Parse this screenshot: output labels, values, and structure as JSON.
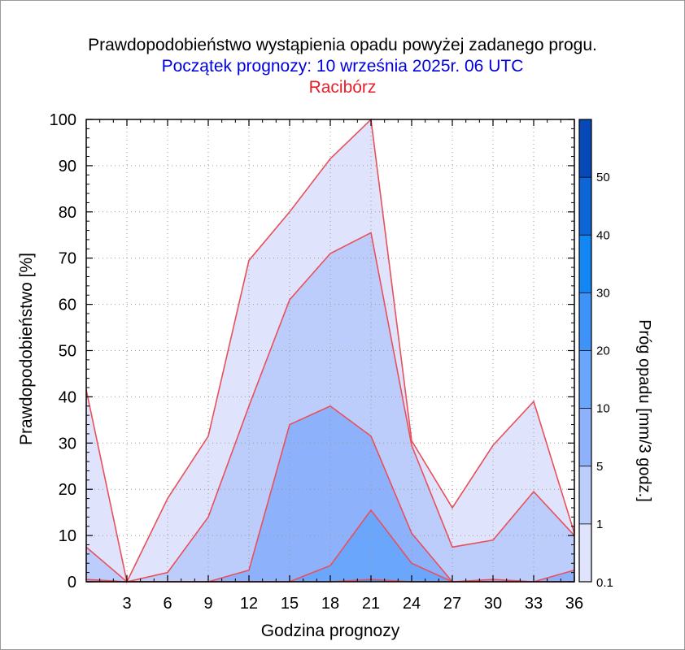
{
  "chart_data": {
    "type": "area",
    "title": "Prawdopodobieństwo wystąpienia opadu powyżej zadanego progu.",
    "subtitle": "Początek prognozy: 10 września 2025r. 06 UTC",
    "location": "Racibórz",
    "xlabel": "Godzina prognozy",
    "ylabel": "Prawdopodobieństwo [%]",
    "colorbar_label": "Próg opadu [mm/3 godz.]",
    "xlim": [
      0,
      36
    ],
    "ylim": [
      0,
      100
    ],
    "x_ticks": [
      3,
      6,
      9,
      12,
      15,
      18,
      21,
      24,
      27,
      30,
      33,
      36
    ],
    "y_ticks": [
      0,
      10,
      20,
      30,
      40,
      50,
      60,
      70,
      80,
      90,
      100
    ],
    "grid": true,
    "x": [
      0,
      3,
      6,
      9,
      12,
      15,
      18,
      21,
      24,
      27,
      30,
      33,
      36
    ],
    "series": [
      {
        "threshold": 0.1,
        "values": [
          41.5,
          0,
          18,
          31.5,
          69.5,
          80,
          91.5,
          100,
          30.5,
          16,
          29.5,
          39,
          10.5
        ]
      },
      {
        "threshold": 1,
        "values": [
          7.5,
          0,
          2,
          14,
          38,
          61,
          71,
          75.5,
          29.5,
          7.5,
          9,
          19.5,
          10
        ]
      },
      {
        "threshold": 5,
        "values": [
          0.5,
          0,
          0,
          0,
          2.5,
          34,
          38,
          31.5,
          10.5,
          0,
          0.5,
          0,
          2.5
        ]
      },
      {
        "threshold": 10,
        "values": [
          0,
          0,
          0,
          0,
          0,
          0,
          3.5,
          15.5,
          4,
          0,
          0,
          0,
          0
        ]
      },
      {
        "threshold": 20,
        "values": [
          0,
          0,
          0,
          0,
          0,
          0,
          0,
          0.5,
          0,
          0,
          0,
          0,
          0
        ]
      }
    ],
    "colorbar": {
      "boundaries": [
        0.1,
        1,
        5,
        10,
        20,
        30,
        40,
        50,
        60
      ],
      "tick_labels": [
        "0.1",
        "1",
        "5",
        "10",
        "20",
        "30",
        "40",
        "50"
      ],
      "colors": [
        "#dfe4fc",
        "#bccdfc",
        "#8eb1fc",
        "#6aa6fc",
        "#3d93f8",
        "#1286f2",
        "#0c66d8",
        "#0849b8"
      ]
    },
    "colors": {
      "title": "#000000",
      "subtitle": "#0000e0",
      "location": "#e8202a",
      "series_line": "#e8505a"
    }
  }
}
